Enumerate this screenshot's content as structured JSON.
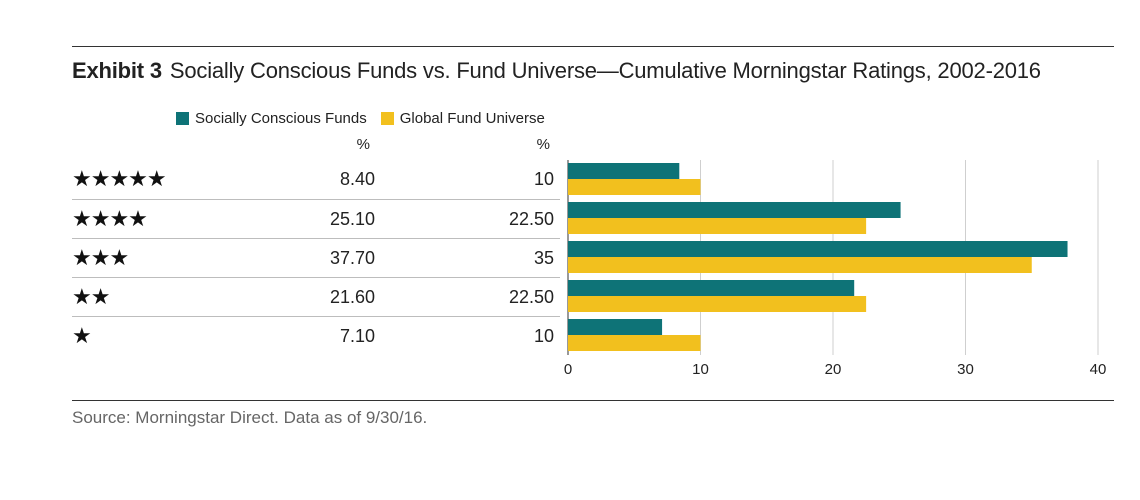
{
  "exhibit_label": "Exhibit 3",
  "title": "Socially Conscious Funds vs. Fund Universe—Cumulative Morningstar Ratings, 2002-2016",
  "source": "Source: Morningstar Direct. Data as of 9/30/16.",
  "table": {
    "col_a_unit": "%",
    "col_b_unit": "%",
    "rows": [
      {
        "rating": "★★★★★",
        "a": "8.40",
        "b": "10"
      },
      {
        "rating": "★★★★",
        "a": "25.10",
        "b": "22.50"
      },
      {
        "rating": "★★★",
        "a": "37.70",
        "b": "35"
      },
      {
        "rating": "★★",
        "a": "21.60",
        "b": "22.50"
      },
      {
        "rating": "★",
        "a": "7.10",
        "b": "10"
      }
    ]
  },
  "chart_data": {
    "type": "bar",
    "orientation": "horizontal",
    "categories": [
      "★★★★★",
      "★★★★",
      "★★★",
      "★★",
      "★"
    ],
    "series": [
      {
        "name": "Socially Conscious Funds",
        "color": "#0e7377",
        "values": [
          8.4,
          25.1,
          37.7,
          21.6,
          7.1
        ]
      },
      {
        "name": "Global Fund Universe",
        "color": "#f2c01e",
        "values": [
          10,
          22.5,
          35,
          22.5,
          10
        ]
      }
    ],
    "xlim": [
      0,
      40
    ],
    "xticks": [
      "0",
      "10",
      "20",
      "30",
      "40"
    ],
    "grid": true,
    "legend": "top-left"
  }
}
